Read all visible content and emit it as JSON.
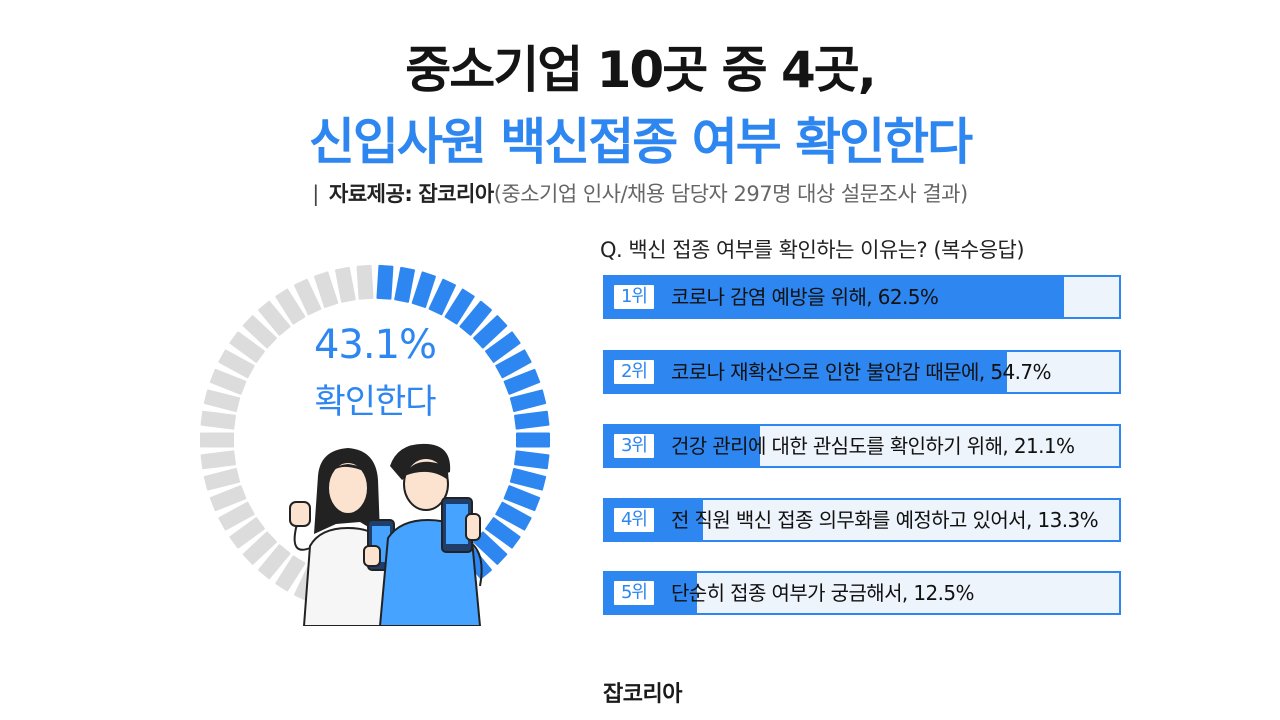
{
  "title": {
    "line1": "중소기업 10곳 중 4곳,",
    "line2": "신입사원 백신접종 여부 확인한다"
  },
  "source": {
    "bar": "|",
    "label": "자료제공:",
    "provider": "잡코리아",
    "detail": "(중소기업 인사/채용 담당자 297명 대상 설문조사 결과)"
  },
  "colors": {
    "accent": "#2e86f0",
    "gray_segment": "#dcdcdc",
    "bar_bg": "#eef4fb",
    "text": "#1a1a1a"
  },
  "donut": {
    "value_label": "43.1%",
    "caption": "확인한다"
  },
  "illustration": {
    "description_icon": "two-people-holding-phones-icon"
  },
  "brand": "잡코리아",
  "chart_data": [
    {
      "type": "pie",
      "title": "",
      "values": [
        43.1,
        56.9
      ],
      "labels": [
        "확인한다",
        ""
      ],
      "value_label": "43.1%"
    },
    {
      "type": "bar",
      "orientation": "horizontal",
      "title": "Q. 백신 접종 여부를 확인하는 이유는? (복수응답)",
      "categories": [
        "1위",
        "2위",
        "3위",
        "4위",
        "5위"
      ],
      "labels": [
        "코로나 감염 예방을 위해, 62.5%",
        "코로나 재확산으로 인한 불안감 때문에, 54.7%",
        "건강 관리에 대한 관심도를 확인하기 위해, 21.1%",
        "전 직원 백신 접종 의무화를 예정하고 있어서, 13.3%",
        "단순히 접종 여부가 궁금해서, 12.5%"
      ],
      "values": [
        62.5,
        54.7,
        21.1,
        13.3,
        12.5
      ],
      "unit": "%",
      "xlim": [
        0,
        70
      ]
    }
  ]
}
